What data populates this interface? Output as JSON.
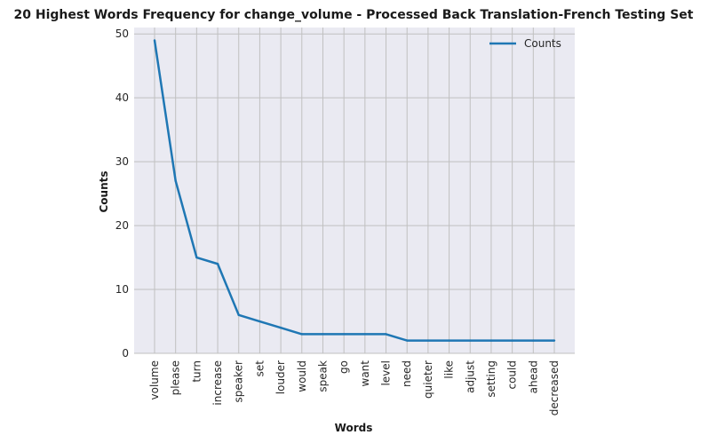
{
  "chart_data": {
    "type": "line",
    "title": "20 Highest Words Frequency for change_volume - Processed Back Translation-French Testing Set",
    "xlabel": "Words",
    "ylabel": "Counts",
    "ylim": [
      0,
      51
    ],
    "yticks": [
      0,
      10,
      20,
      30,
      40,
      50
    ],
    "grid": true,
    "legend_position": "top-right",
    "categories": [
      "volume",
      "please",
      "turn",
      "increase",
      "speaker",
      "set",
      "louder",
      "would",
      "speak",
      "go",
      "want",
      "level",
      "need",
      "quieter",
      "like",
      "adjust",
      "setting",
      "could",
      "ahead",
      "decreased"
    ],
    "series": [
      {
        "name": "Counts",
        "color": "#1f77b4",
        "values": [
          49,
          27,
          15,
          14,
          6,
          5,
          4,
          3,
          3,
          3,
          3,
          3,
          2,
          2,
          2,
          2,
          2,
          2,
          2,
          2
        ]
      }
    ]
  }
}
